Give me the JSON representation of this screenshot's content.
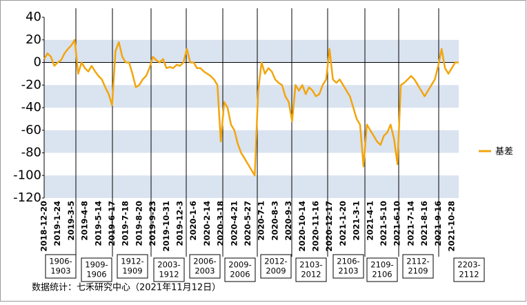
{
  "chart_data": {
    "type": "line",
    "categories": [
      "2018-12-20",
      null,
      null,
      null,
      "2019-1-24",
      null,
      null,
      null,
      "2019-3-5",
      null,
      null,
      null,
      "2019-4-8",
      null,
      null,
      null,
      "2019-5-14",
      null,
      null,
      null,
      "2019-6-17",
      null,
      null,
      null,
      "2019-7-18",
      null,
      null,
      null,
      "2019-8-20",
      null,
      null,
      null,
      "2019-9-23",
      null,
      null,
      null,
      "2019-10-31",
      null,
      null,
      null,
      "2019-12-3",
      null,
      null,
      null,
      "2020-1-6",
      null,
      null,
      null,
      "2020-2-14",
      null,
      null,
      null,
      "2020-3-18",
      null,
      null,
      null,
      "2020-4-21",
      null,
      null,
      null,
      "2020-5-27",
      null,
      null,
      null,
      "2020-7-1",
      null,
      null,
      null,
      "2020-8-3",
      null,
      null,
      null,
      "2020-9-3",
      null,
      null,
      null,
      "2020-10-14",
      null,
      null,
      null,
      "2020-11-16",
      null,
      null,
      null,
      "2020-12-17",
      null,
      null,
      null,
      "2021-1-20",
      null,
      null,
      null,
      "2021-3-1",
      null,
      null,
      null,
      "2021-4-1",
      null,
      null,
      null,
      "2021-5-10",
      null,
      null,
      null,
      "2021-6-10",
      null,
      null,
      null,
      "2021-7-14",
      null,
      null,
      null,
      "2021-8-16",
      null,
      null,
      null,
      "2021-9-16",
      null,
      null,
      null,
      "2021-10-28",
      null,
      null
    ],
    "series": [
      {
        "name": "基差",
        "color": "#f2a50c",
        "values": [
          3,
          8,
          5,
          -3,
          0,
          2,
          8,
          12,
          15,
          20,
          -10,
          0,
          -5,
          -8,
          -3,
          -8,
          -12,
          -15,
          -22,
          -28,
          -38,
          10,
          18,
          5,
          0,
          0,
          -10,
          -22,
          -20,
          -15,
          -12,
          -5,
          5,
          2,
          0,
          3,
          -5,
          -4,
          -5,
          -2,
          -3,
          0,
          12,
          0,
          0,
          -5,
          -5,
          -8,
          -10,
          -12,
          -15,
          -20,
          -70,
          -35,
          -40,
          -55,
          -60,
          -72,
          -80,
          -85,
          -90,
          -95,
          -100,
          -25,
          0,
          -10,
          -5,
          -8,
          -15,
          -18,
          -20,
          -30,
          -35,
          -52,
          -20,
          -25,
          -20,
          -28,
          -22,
          -25,
          -30,
          -28,
          -20,
          -15,
          12,
          -15,
          -18,
          -15,
          -20,
          -25,
          -30,
          -40,
          -50,
          -55,
          -92,
          -55,
          -60,
          -65,
          -70,
          -73,
          -65,
          -62,
          -55,
          -68,
          -90,
          -20,
          -18,
          -15,
          -12,
          -15,
          -20,
          -25,
          -30,
          -25,
          -20,
          -15,
          -3,
          12,
          -5,
          -10,
          -5,
          0,
          0
        ]
      }
    ],
    "ylim": [
      -120,
      40
    ],
    "yticks": [
      40,
      20,
      0,
      -20,
      -40,
      -60,
      -80,
      -100,
      -120
    ],
    "legend": "right",
    "contracts": [
      [
        "1906-",
        "1903"
      ],
      [
        "1909-",
        "1906"
      ],
      [
        "1912-",
        "1909"
      ],
      [
        "2003-",
        "1912"
      ],
      [
        "2006-",
        "2003"
      ],
      [
        "2009-",
        "2006"
      ],
      [
        "2012-",
        "2009"
      ],
      [
        "2103-",
        "2012"
      ],
      [
        "2106-",
        "2103"
      ],
      [
        "2109-",
        "2106"
      ],
      [
        "2112-",
        "2109"
      ],
      [
        "2203-",
        "2112"
      ]
    ],
    "source": "数据统计：七禾研究中心（2021年11月12日）"
  }
}
